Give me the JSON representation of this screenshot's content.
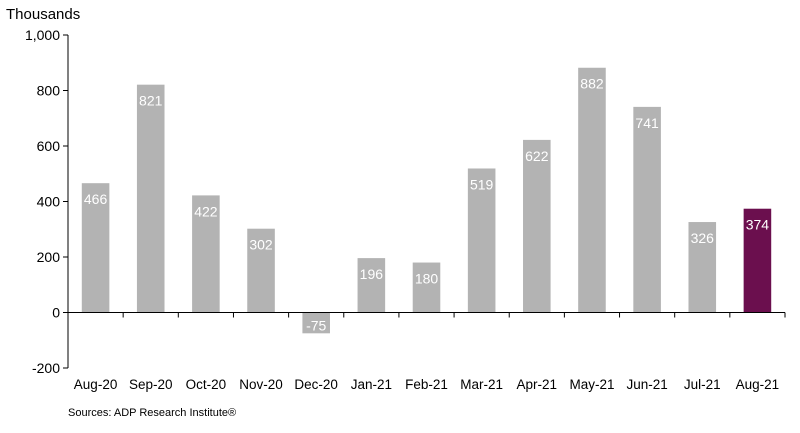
{
  "chart_data": {
    "type": "bar",
    "ylabel": "Thousands",
    "categories": [
      "Aug-20",
      "Sep-20",
      "Oct-20",
      "Nov-20",
      "Dec-20",
      "Jan-21",
      "Feb-21",
      "Mar-21",
      "Apr-21",
      "May-21",
      "Jun-21",
      "Jul-21",
      "Aug-21"
    ],
    "values": [
      466,
      821,
      422,
      302,
      -75,
      196,
      180,
      519,
      622,
      882,
      741,
      326,
      374
    ],
    "data_labels": [
      "466",
      "821",
      "422",
      "302",
      "-75",
      "196",
      "180",
      "519",
      "622",
      "882",
      "741",
      "326",
      "374"
    ],
    "ylim": [
      -200,
      1000
    ],
    "yticks": [
      -200,
      0,
      200,
      400,
      600,
      800,
      1000
    ],
    "ytick_labels": [
      "-200",
      "0",
      "200",
      "400",
      "600",
      "800",
      "1,000"
    ],
    "grid": false,
    "legend": "none",
    "colors": {
      "bar": "#b3b3b3",
      "highlight": "#6b0f4e",
      "highlight_index": 12
    },
    "source": "Sources: ADP Research Institute®"
  }
}
